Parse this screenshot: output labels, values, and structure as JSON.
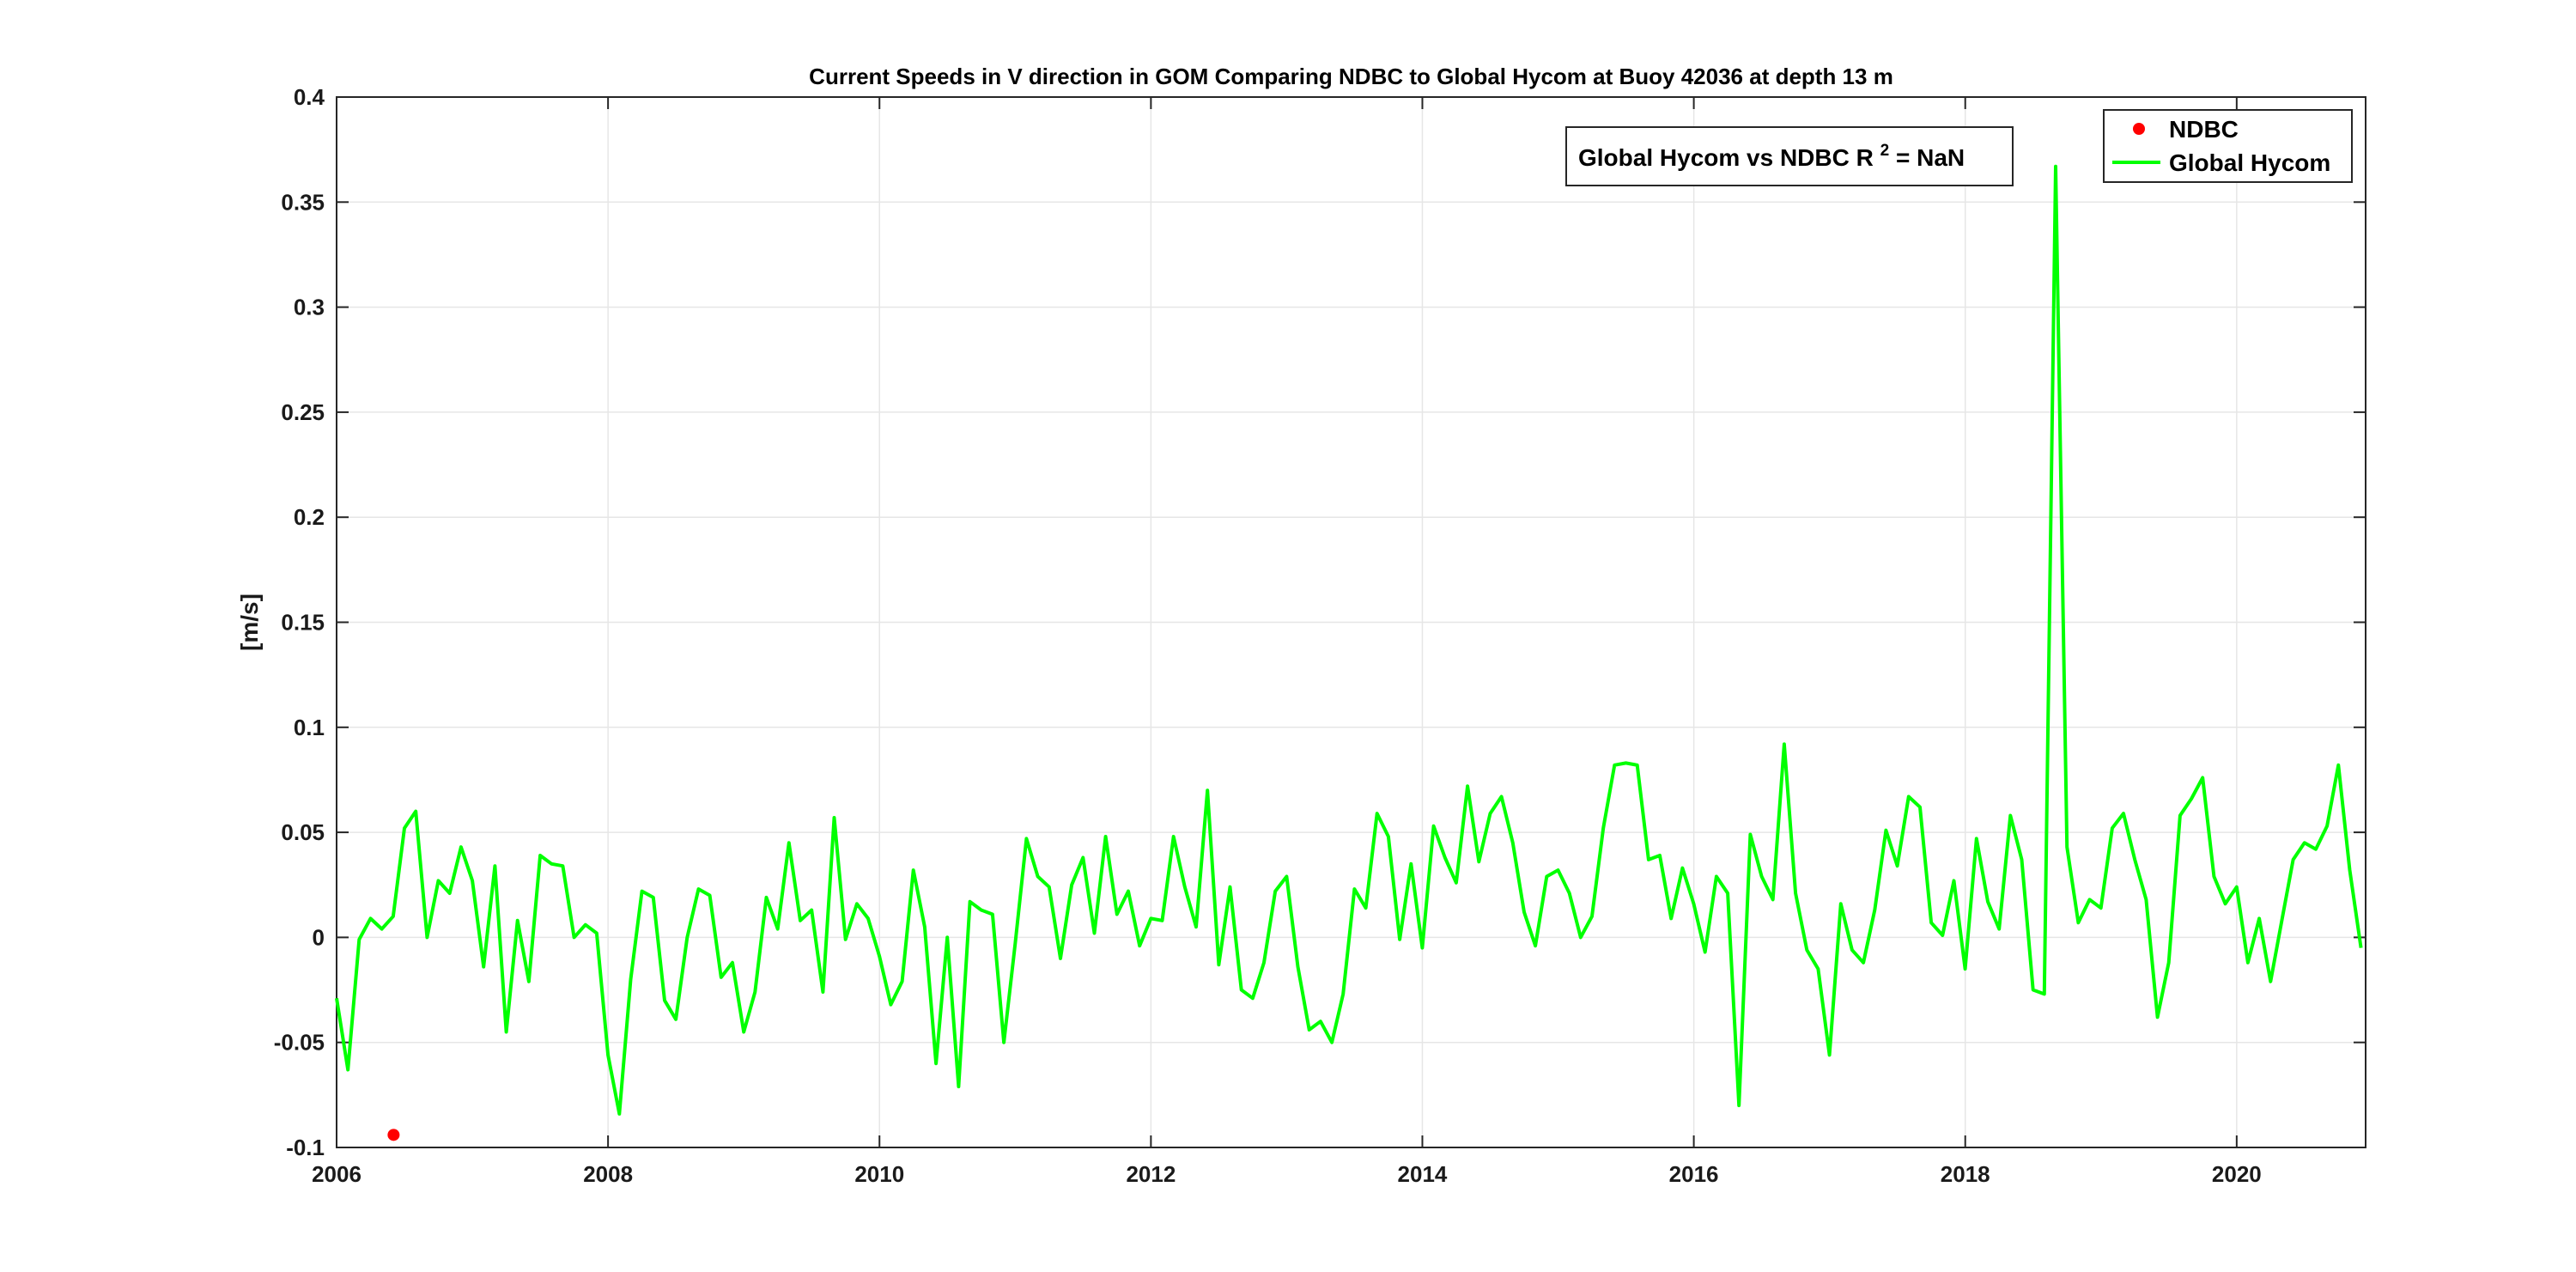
{
  "chart_data": {
    "type": "line",
    "title": "Current Speeds in V direction in GOM Comparing NDBC to Global Hycom at Buoy  42036  at depth  13 m",
    "xlabel": "",
    "ylabel": "[m/s]",
    "xlim": [
      2006,
      2020.95
    ],
    "ylim": [
      -0.1,
      0.4
    ],
    "grid": true,
    "legend_position": "top-right",
    "x_ticks": [
      "2006",
      "2008",
      "2010",
      "2012",
      "2014",
      "2016",
      "2018",
      "2020"
    ],
    "y_ticks": [
      "-0.1",
      "-0.05",
      "0",
      "0.05",
      "0.1",
      "0.15",
      "0.2",
      "0.25",
      "0.3",
      "0.35",
      "0.4"
    ],
    "annotation": {
      "text": "Global Hycom vs NDBC R",
      "sup": "2",
      "suffix": " = NaN"
    },
    "series": [
      {
        "name": "NDBC",
        "style": "marker",
        "color": "#ff0000",
        "points": [
          [
            2006.42,
            -0.094
          ]
        ]
      },
      {
        "name": "Global Hycom",
        "style": "line",
        "color": "#00ff00",
        "x_start": 2006.0,
        "x_step": 0.08333,
        "values": [
          -0.029,
          -0.063,
          -0.001,
          0.009,
          0.004,
          0.01,
          0.052,
          0.06,
          0.0,
          0.027,
          0.021,
          0.043,
          0.027,
          -0.014,
          0.034,
          -0.045,
          0.008,
          -0.021,
          0.039,
          0.035,
          0.034,
          0.0,
          0.006,
          0.002,
          -0.056,
          -0.084,
          -0.02,
          0.022,
          0.019,
          -0.03,
          -0.039,
          0.0,
          0.023,
          0.02,
          -0.019,
          -0.012,
          -0.045,
          -0.026,
          0.019,
          0.004,
          0.045,
          0.008,
          0.013,
          -0.026,
          0.057,
          -0.001,
          0.016,
          0.009,
          -0.009,
          -0.032,
          -0.021,
          0.032,
          0.005,
          -0.06,
          0.0,
          -0.071,
          0.017,
          0.013,
          0.011,
          -0.05,
          -0.003,
          0.047,
          0.029,
          0.024,
          -0.01,
          0.025,
          0.038,
          0.002,
          0.048,
          0.011,
          0.022,
          -0.004,
          0.009,
          0.008,
          0.048,
          0.024,
          0.005,
          0.07,
          -0.013,
          0.024,
          -0.025,
          -0.029,
          -0.012,
          0.022,
          0.029,
          -0.014,
          -0.044,
          -0.04,
          -0.05,
          -0.027,
          0.023,
          0.014,
          0.059,
          0.048,
          -0.001,
          0.035,
          -0.005,
          0.053,
          0.038,
          0.026,
          0.072,
          0.036,
          0.059,
          0.067,
          0.045,
          0.012,
          -0.004,
          0.029,
          0.032,
          0.021,
          0.0,
          0.01,
          0.052,
          0.082,
          0.083,
          0.082,
          0.037,
          0.039,
          0.009,
          0.033,
          0.016,
          -0.007,
          0.029,
          0.021,
          -0.08,
          0.049,
          0.029,
          0.018,
          0.092,
          0.021,
          -0.006,
          -0.015,
          -0.056,
          0.016,
          -0.006,
          -0.012,
          0.013,
          0.051,
          0.034,
          0.067,
          0.062,
          0.007,
          0.001,
          0.027,
          -0.015,
          0.047,
          0.017,
          0.004,
          0.058,
          0.037,
          -0.025,
          -0.027,
          0.367,
          0.043,
          0.007,
          0.018,
          0.014,
          0.052,
          0.059,
          0.037,
          0.018,
          -0.038,
          -0.012,
          0.058,
          0.066,
          0.076,
          0.029,
          0.016,
          0.024,
          -0.012,
          0.009,
          -0.021,
          0.008,
          0.037,
          0.045,
          0.042,
          0.053,
          0.082,
          0.032,
          -0.005
        ]
      }
    ]
  }
}
